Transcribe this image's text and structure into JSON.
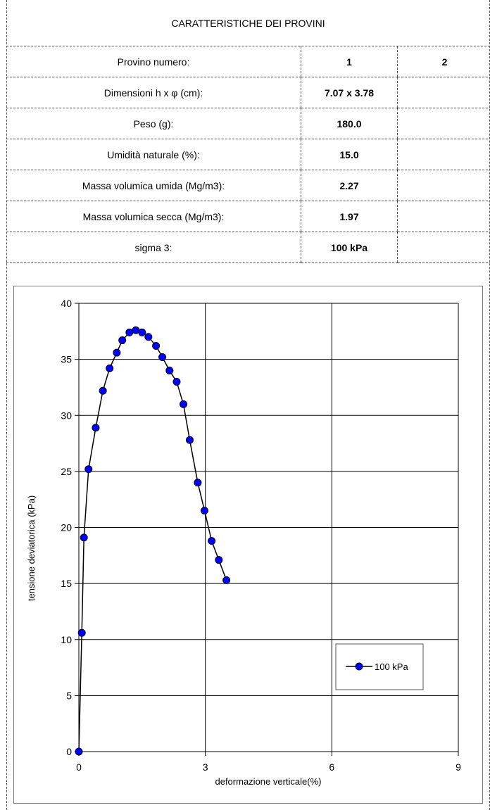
{
  "header": {
    "title": "CARATTERISTICHE DEI PROVINI"
  },
  "table": {
    "rows": [
      {
        "label": "Provino numero:",
        "v1": "1",
        "v2": "2"
      },
      {
        "label": "Dimensioni h x φ (cm):",
        "v1": "7.07 x 3.78",
        "v2": ""
      },
      {
        "label": "Peso (g):",
        "v1": "180.0",
        "v2": ""
      },
      {
        "label": "Umidità naturale (%):",
        "v1": "15.0",
        "v2": ""
      },
      {
        "label": "Massa volumica umida (Mg/m3):",
        "v1": "2.27",
        "v2": ""
      },
      {
        "label": "Massa volumica secca (Mg/m3):",
        "v1": "1.97",
        "v2": ""
      },
      {
        "label": "sigma 3:",
        "v1": "100 kPa",
        "v2": ""
      }
    ]
  },
  "chart_data": {
    "type": "line",
    "title": "",
    "xlabel": "deformazione verticale(%)",
    "ylabel": "tensione deviatorica (kPa)",
    "xlim": [
      0,
      9
    ],
    "ylim": [
      0,
      40
    ],
    "xticks": [
      0,
      3,
      6,
      9
    ],
    "yticks": [
      0,
      5,
      10,
      15,
      20,
      25,
      30,
      35,
      40
    ],
    "grid": true,
    "legend_position": "lower-right",
    "series": [
      {
        "name": "100 kPa",
        "color": "#0000ff",
        "x": [
          0.0,
          0.07,
          0.12,
          0.23,
          0.4,
          0.57,
          0.73,
          0.9,
          1.03,
          1.2,
          1.35,
          1.5,
          1.65,
          1.83,
          1.98,
          2.15,
          2.32,
          2.48,
          2.63,
          2.82,
          2.98,
          3.15,
          3.32,
          3.5
        ],
        "y": [
          0.0,
          10.6,
          19.1,
          25.2,
          28.9,
          32.2,
          34.2,
          35.6,
          36.7,
          37.4,
          37.6,
          37.4,
          37.0,
          36.2,
          35.2,
          34.0,
          33.0,
          31.0,
          27.8,
          24.0,
          21.5,
          18.8,
          17.1,
          15.3
        ]
      }
    ]
  }
}
